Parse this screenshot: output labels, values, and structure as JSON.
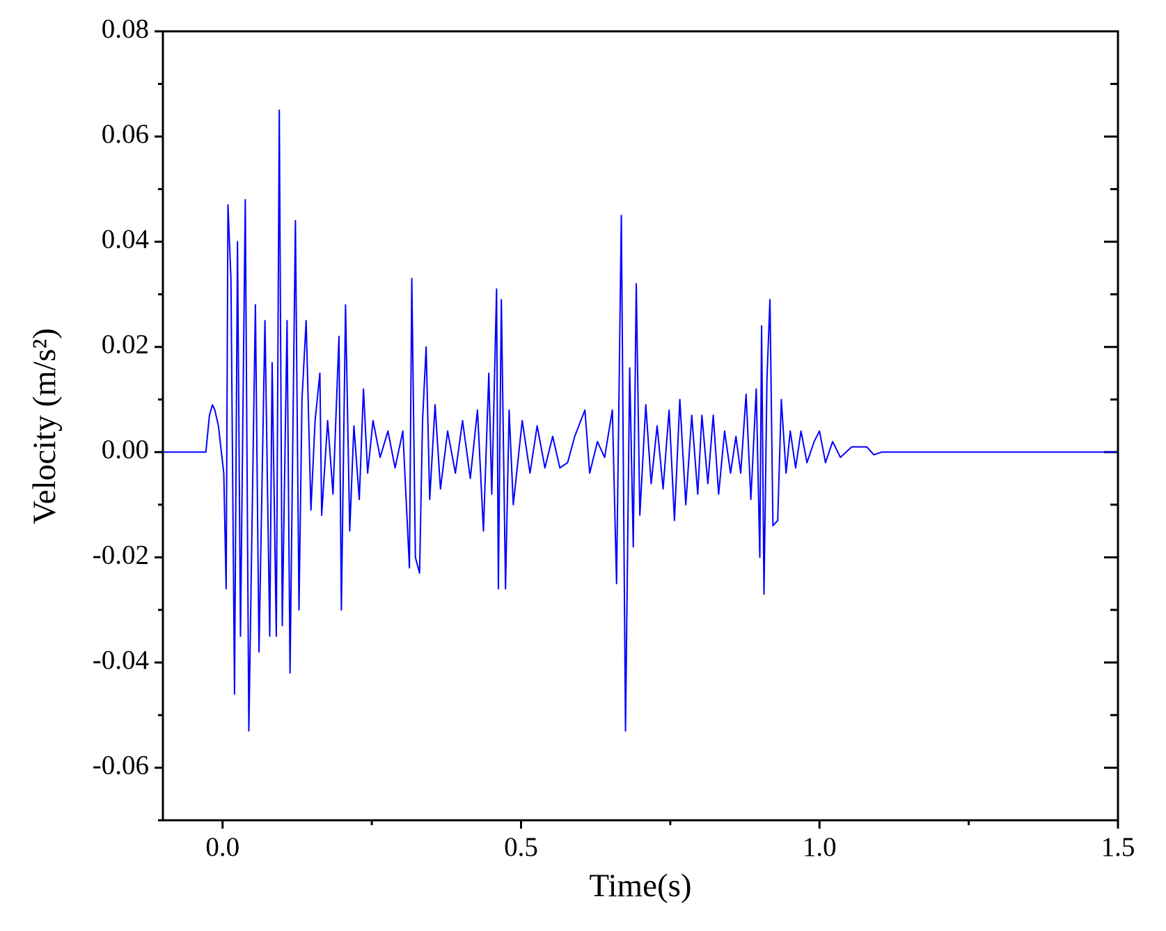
{
  "chart_data": {
    "type": "line",
    "xlabel": "Time(s)",
    "ylabel": "Velocity (m/s²)",
    "xlim": [
      -0.1,
      1.5
    ],
    "ylim": [
      -0.07,
      0.08
    ],
    "xticks": [
      {
        "value": 0,
        "label": "0.0"
      },
      0.5,
      {
        "value": 1,
        "label": "1.0"
      },
      1.5
    ],
    "xminorticks": [
      0.25,
      0.75,
      1.25
    ],
    "yticks": [
      -0.06,
      -0.04,
      -0.02,
      {
        "value": 0,
        "label": "0.00"
      },
      0.02,
      0.04,
      0.06,
      0.08
    ],
    "yminorticks": [
      -0.07,
      -0.05,
      -0.03,
      -0.01,
      0.01,
      0.03,
      0.05,
      0.07
    ],
    "series": [
      {
        "color": "#0000ff",
        "x": [
          -0.1,
          -0.028,
          -0.022,
          -0.017,
          -0.013,
          -0.007,
          -0.002,
          0.002,
          0.006,
          0.009,
          0.014,
          0.02,
          0.025,
          0.03,
          0.038,
          0.044,
          0.055,
          0.061,
          0.071,
          0.079,
          0.083,
          0.09,
          0.095,
          0.1,
          0.108,
          0.113,
          0.122,
          0.128,
          0.133,
          0.14,
          0.148,
          0.155,
          0.163,
          0.166,
          0.176,
          0.185,
          0.195,
          0.199,
          0.206,
          0.213,
          0.22,
          0.229,
          0.236,
          0.243,
          0.252,
          0.264,
          0.277,
          0.289,
          0.302,
          0.313,
          0.317,
          0.323,
          0.33,
          0.335,
          0.341,
          0.347,
          0.356,
          0.365,
          0.377,
          0.39,
          0.402,
          0.415,
          0.427,
          0.437,
          0.446,
          0.451,
          0.459,
          0.462,
          0.467,
          0.474,
          0.48,
          0.487,
          0.502,
          0.515,
          0.527,
          0.54,
          0.553,
          0.565,
          0.578,
          0.59,
          0.607,
          0.615,
          0.628,
          0.64,
          0.653,
          0.66,
          0.668,
          0.675,
          0.682,
          0.688,
          0.693,
          0.699,
          0.709,
          0.718,
          0.728,
          0.738,
          0.748,
          0.757,
          0.766,
          0.776,
          0.786,
          0.796,
          0.803,
          0.813,
          0.822,
          0.831,
          0.841,
          0.851,
          0.86,
          0.868,
          0.877,
          0.885,
          0.894,
          0.9,
          0.903,
          0.907,
          0.912,
          0.917,
          0.922,
          0.93,
          0.936,
          0.944,
          0.951,
          0.96,
          0.969,
          0.979,
          0.991,
          1.0,
          1.01,
          1.022,
          1.035,
          1.054,
          1.079,
          1.091,
          1.104,
          1.5
        ],
        "values": [
          0,
          0,
          0.007,
          0.009,
          0.008,
          0.005,
          0.0,
          -0.004,
          -0.026,
          0.047,
          0.033,
          -0.046,
          0.04,
          -0.035,
          0.048,
          -0.053,
          0.028,
          -0.038,
          0.025,
          -0.035,
          0.017,
          -0.035,
          0.065,
          -0.033,
          0.025,
          -0.042,
          0.044,
          -0.03,
          0.01,
          0.025,
          -0.011,
          0.006,
          0.015,
          -0.012,
          0.006,
          -0.008,
          0.022,
          -0.03,
          0.028,
          -0.015,
          0.005,
          -0.009,
          0.012,
          -0.004,
          0.006,
          -0.001,
          0.004,
          -0.003,
          0.004,
          -0.022,
          0.033,
          -0.02,
          -0.023,
          0.006,
          0.02,
          -0.009,
          0.009,
          -0.007,
          0.004,
          -0.004,
          0.006,
          -0.005,
          0.008,
          -0.015,
          0.015,
          -0.008,
          0.031,
          -0.026,
          0.029,
          -0.026,
          0.008,
          -0.01,
          0.006,
          -0.004,
          0.005,
          -0.003,
          0.003,
          -0.003,
          -0.002,
          0.003,
          0.008,
          -0.004,
          0.002,
          -0.001,
          0.008,
          -0.025,
          0.045,
          -0.053,
          0.016,
          -0.018,
          0.032,
          -0.012,
          0.009,
          -0.006,
          0.005,
          -0.007,
          0.008,
          -0.013,
          0.01,
          -0.01,
          0.007,
          -0.008,
          0.007,
          -0.006,
          0.007,
          -0.008,
          0.004,
          -0.004,
          0.003,
          -0.004,
          0.011,
          -0.009,
          0.012,
          -0.02,
          0.024,
          -0.027,
          0.014,
          0.029,
          -0.014,
          -0.013,
          0.01,
          -0.004,
          0.004,
          -0.003,
          0.004,
          -0.002,
          0.002,
          0.004,
          -0.002,
          0.002,
          -0.001,
          0.001,
          0.001,
          -0.0005,
          0,
          0
        ]
      }
    ]
  }
}
